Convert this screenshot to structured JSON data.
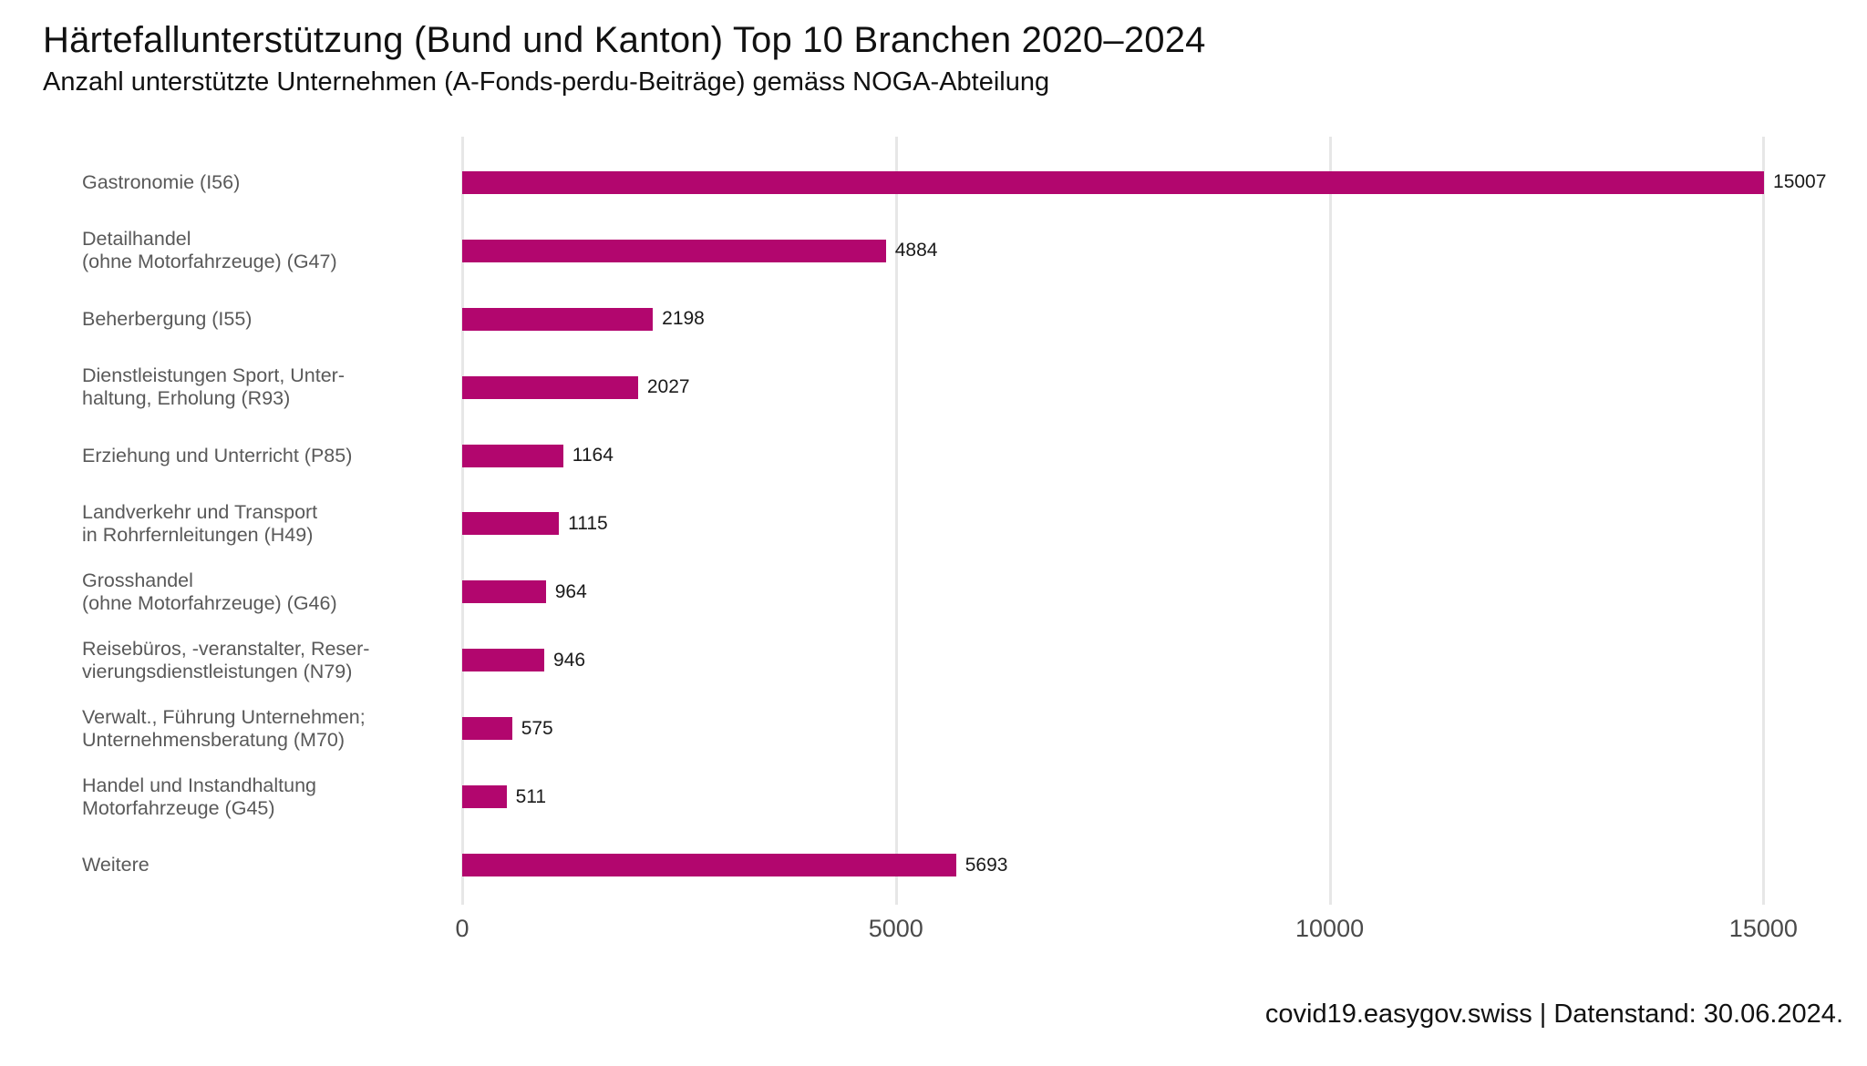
{
  "footer": {
    "text": "covid19.easygov.swiss | Datenstand: 30.06.2024."
  },
  "colors": {
    "bar": "#b2066e",
    "gridline": "#e7e7e7",
    "category_label": "#595959",
    "axis_label": "#4a4a4a",
    "value_label": "#1a1a1a",
    "title": "#111111",
    "background": "#ffffff"
  },
  "chart_data": {
    "type": "bar",
    "orientation": "horizontal",
    "title": "Härtefallunterstützung (Bund und Kanton) Top 10 Branchen 2020–2024",
    "subtitle": "Anzahl unterstützte Unternehmen (A-Fonds-perdu-Beiträge) gemäss NOGA-Abteilung",
    "categories": [
      "Gastronomie (I56)",
      "Detailhandel\n(ohne Motorfahrzeuge) (G47)",
      "Beherbergung (I55)",
      "Dienstleistungen Sport, Unter-\nhaltung, Erholung (R93)",
      "Erziehung und Unterricht (P85)",
      "Landverkehr und Transport\nin Rohrfernleitungen (H49)",
      "Grosshandel\n(ohne Motorfahrzeuge) (G46)",
      "Reisebüros, -veranstalter, Reser-\nvierungsdienstleistungen (N79)",
      "Verwalt., Führung Unternehmen;\nUnternehmensberatung (M70)",
      "Handel und Instandhaltung\nMotorfahrzeuge (G45)",
      "Weitere"
    ],
    "values": [
      15007,
      4884,
      2198,
      2027,
      1164,
      1115,
      964,
      946,
      575,
      511,
      5693
    ],
    "x_ticks": [
      0,
      5000,
      10000,
      15000
    ],
    "x_tick_labels": [
      "0",
      "5000",
      "10000",
      "15000"
    ],
    "xlim": [
      0,
      15900
    ],
    "xlabel": "",
    "ylabel": "",
    "grid": true,
    "legend": false
  }
}
